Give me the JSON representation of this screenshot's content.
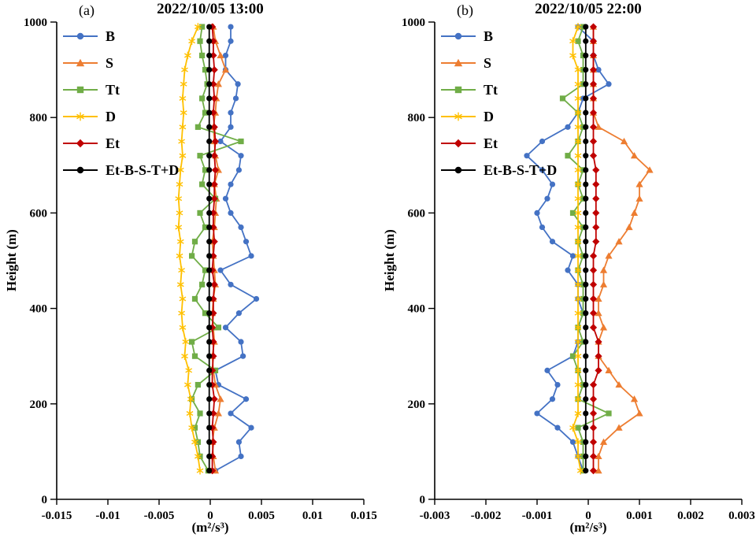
{
  "chart_data": [
    {
      "type": "line",
      "panel_label": "(a)",
      "title": "2022/10/05 13:00",
      "xlabel": "(m²/s³)",
      "ylabel": "Height (m)",
      "xlim": [
        -0.015,
        0.015
      ],
      "ylim": [
        0,
        1000
      ],
      "xticks": [
        "-0.015",
        "-0.01",
        "-0.005",
        "0",
        "0.005",
        "0.01",
        "0.015"
      ],
      "xtick_values": [
        -0.015,
        -0.01,
        -0.005,
        0,
        0.005,
        0.01,
        0.015
      ],
      "yticks": [
        0,
        200,
        400,
        600,
        800,
        1000
      ],
      "grid": false,
      "legend_position": "top-left",
      "heights_m": [
        60,
        90,
        120,
        150,
        180,
        210,
        240,
        270,
        300,
        330,
        360,
        390,
        420,
        450,
        480,
        510,
        540,
        570,
        600,
        630,
        660,
        690,
        720,
        750,
        780,
        810,
        840,
        870,
        900,
        930,
        960,
        990
      ],
      "series": [
        {
          "name": "B",
          "color": "#4472C4",
          "marker": "circle",
          "values": [
            0.0005,
            0.003,
            0.0028,
            0.004,
            0.002,
            0.0035,
            0.0008,
            0.0005,
            0.0032,
            0.003,
            0.0015,
            0.0028,
            0.0045,
            0.002,
            0.001,
            0.004,
            0.0035,
            0.003,
            0.002,
            0.0015,
            0.002,
            0.0028,
            0.003,
            0.001,
            0.002,
            0.002,
            0.0025,
            0.0027,
            0.0015,
            0.0015,
            0.002,
            0.002
          ]
        },
        {
          "name": "S",
          "color": "#ED7D31",
          "marker": "triangle",
          "values": [
            0.0005,
            0.0003,
            0.0002,
            0.0004,
            0.0008,
            0.001,
            0.0005,
            0.0003,
            0.0002,
            0.0004,
            0.0003,
            0.0002,
            0.0003,
            0.0005,
            0.0004,
            0.0003,
            0.0002,
            0.0004,
            0.0005,
            0.0006,
            0.0004,
            0.0008,
            0.0005,
            0.0004,
            0.0003,
            0.0005,
            0.0006,
            0.0008,
            0.0015,
            0.001,
            0.0005,
            0.0003
          ]
        },
        {
          "name": "Tt",
          "color": "#70AD47",
          "marker": "square",
          "values": [
            -0.0002,
            -0.001,
            -0.0012,
            -0.0015,
            -0.001,
            -0.0018,
            -0.0012,
            0.0005,
            -0.0015,
            -0.0018,
            0.0008,
            -0.0005,
            -0.0015,
            -0.0008,
            -0.0005,
            -0.0018,
            -0.0015,
            -0.0005,
            -0.001,
            0.0005,
            -0.0008,
            -0.0005,
            -0.001,
            0.003,
            -0.0012,
            -0.0005,
            -0.0008,
            -0.0003,
            -0.0005,
            -0.0008,
            -0.001,
            -0.0008
          ]
        },
        {
          "name": "D",
          "color": "#FFC000",
          "marker": "star",
          "values": [
            -0.001,
            -0.0012,
            -0.0015,
            -0.0018,
            -0.002,
            -0.0019,
            -0.0022,
            -0.0021,
            -0.0025,
            -0.0024,
            -0.0027,
            -0.0028,
            -0.0027,
            -0.0029,
            -0.0028,
            -0.003,
            -0.0029,
            -0.0031,
            -0.003,
            -0.0031,
            -0.003,
            -0.0029,
            -0.0027,
            -0.0028,
            -0.0027,
            -0.0026,
            -0.0027,
            -0.0026,
            -0.0025,
            -0.0022,
            -0.0018,
            -0.0012
          ]
        },
        {
          "name": "Et",
          "color": "#C00000",
          "marker": "diamond",
          "values": [
            0.0002,
            0.0002,
            0.0003,
            0.0002,
            0.0003,
            0.0004,
            0.0002,
            0.0002,
            0.0003,
            0.0003,
            0.0002,
            0.0003,
            0.0003,
            0.0004,
            0.0002,
            0.0003,
            0.0004,
            0.0003,
            0.0003,
            0.0004,
            0.0004,
            0.0005,
            0.0004,
            0.0005,
            0.0004,
            0.0003,
            0.0004,
            0.0003,
            0.0004,
            0.0003,
            0.0003,
            0.0002
          ]
        },
        {
          "name": "Et-B-S-T+D",
          "color": "#000000",
          "marker": "circle",
          "values": [
            -0.0001,
            -0.0001,
            -0.0001,
            -0.0001,
            -0.0001,
            -0.0001,
            -0.0001,
            -0.0001,
            -0.0001,
            -0.0001,
            -0.0001,
            -0.0001,
            -0.0001,
            -0.0001,
            -0.0001,
            -0.0001,
            -0.0001,
            -0.0001,
            -0.0001,
            -0.0001,
            -0.0001,
            -0.0001,
            -0.0001,
            -0.0001,
            -0.0001,
            -0.0001,
            -0.0001,
            -0.0001,
            -0.0001,
            -0.0001,
            -0.0001,
            -0.0001
          ]
        }
      ]
    },
    {
      "type": "line",
      "panel_label": "(b)",
      "title": "2022/10/05 22:00",
      "xlabel": "(m²/s³)",
      "ylabel": "Height (m)",
      "xlim": [
        -0.003,
        0.003
      ],
      "ylim": [
        0,
        1000
      ],
      "xticks": [
        "-0.003",
        "-0.002",
        "-0.001",
        "0",
        "0.001",
        "0.002",
        "0.003"
      ],
      "xtick_values": [
        -0.003,
        -0.002,
        -0.001,
        0,
        0.001,
        0.002,
        0.003
      ],
      "yticks": [
        0,
        200,
        400,
        600,
        800,
        1000
      ],
      "grid": false,
      "legend_position": "top-left",
      "heights_m": [
        60,
        90,
        120,
        150,
        180,
        210,
        240,
        270,
        300,
        330,
        360,
        390,
        420,
        450,
        480,
        510,
        540,
        570,
        600,
        630,
        660,
        690,
        720,
        750,
        780,
        810,
        840,
        870,
        900,
        930,
        960,
        990
      ],
      "series": [
        {
          "name": "B",
          "color": "#4472C4",
          "marker": "circle",
          "values": [
            -0.0001,
            -0.0002,
            -0.0003,
            -0.0006,
            -0.001,
            -0.0007,
            -0.0006,
            -0.0008,
            -0.0003,
            -0.0002,
            -0.0002,
            -0.0001,
            -0.0002,
            -0.0002,
            -0.0004,
            -0.0003,
            -0.0007,
            -0.0009,
            -0.001,
            -0.0008,
            -0.0007,
            -0.0009,
            -0.0012,
            -0.0009,
            -0.0004,
            -0.0002,
            -0.0001,
            0.0004,
            0.0002,
            0.0001,
            0.0001,
            -0.0002
          ]
        },
        {
          "name": "S",
          "color": "#ED7D31",
          "marker": "triangle",
          "values": [
            0.0002,
            0.0002,
            0.0003,
            0.0006,
            0.001,
            0.0009,
            0.0006,
            0.0004,
            0.0002,
            0.0002,
            0.0003,
            0.0002,
            0.0002,
            0.0003,
            0.0003,
            0.0004,
            0.0006,
            0.0008,
            0.0009,
            0.001,
            0.001,
            0.0012,
            0.0009,
            0.0007,
            0.0002,
            0.0001,
            0.0001,
            0.0001,
            0.0001,
            0.0001,
            0.0001,
            0.0001
          ]
        },
        {
          "name": "Tt",
          "color": "#70AD47",
          "marker": "square",
          "values": [
            -0.0001,
            -0.0001,
            -0.0001,
            -0.0002,
            0.0004,
            -0.0002,
            -0.0001,
            -0.0002,
            -0.0003,
            -0.0001,
            -0.0002,
            -0.0001,
            -0.0001,
            -0.0001,
            -0.0002,
            -0.0001,
            -0.0002,
            -0.0001,
            -0.0003,
            -0.0001,
            -0.0002,
            -0.0001,
            -0.0004,
            -0.0002,
            -0.0001,
            -0.0002,
            -0.0005,
            -0.0001,
            -0.0001,
            -0.0001,
            -0.0002,
            -0.0001
          ]
        },
        {
          "name": "D",
          "color": "#FFC000",
          "marker": "star",
          "values": [
            -0.00015,
            -0.0002,
            -0.0002,
            -0.0003,
            -0.0002,
            -0.0002,
            -0.0002,
            -0.0002,
            -0.0002,
            -0.0002,
            -0.0002,
            -0.0002,
            -0.0002,
            -0.0002,
            -0.0002,
            -0.0002,
            -0.0002,
            -0.0002,
            -0.0002,
            -0.0002,
            -0.0002,
            -0.0002,
            -0.0002,
            -0.0002,
            -0.0002,
            -0.0002,
            -0.0002,
            -0.0002,
            -0.0002,
            -0.0003,
            -0.0003,
            -0.0002
          ]
        },
        {
          "name": "Et",
          "color": "#C00000",
          "marker": "diamond",
          "values": [
            0.0001,
            0.0001,
            0.0001,
            0.0001,
            0.0001,
            0.0001,
            0.0001,
            0.0002,
            0.0002,
            0.0002,
            0.0001,
            0.0001,
            0.0001,
            0.0001,
            0.0001,
            0.0001,
            0.00015,
            0.00015,
            0.00015,
            0.00015,
            0.00015,
            0.00015,
            0.0001,
            0.0001,
            0.0001,
            0.0001,
            0.0001,
            0.0001,
            0.0001,
            0.0001,
            0.0001,
            0.0001
          ]
        },
        {
          "name": "Et-B-S-T+D",
          "color": "#000000",
          "marker": "circle",
          "values": [
            -5e-05,
            -5e-05,
            -5e-05,
            -5e-05,
            -5e-05,
            -5e-05,
            -5e-05,
            -5e-05,
            -5e-05,
            -5e-05,
            -5e-05,
            -5e-05,
            -5e-05,
            -5e-05,
            -5e-05,
            -5e-05,
            -5e-05,
            -5e-05,
            -5e-05,
            -5e-05,
            -5e-05,
            -5e-05,
            -5e-05,
            -5e-05,
            -5e-05,
            -5e-05,
            -5e-05,
            -5e-05,
            -5e-05,
            -5e-05,
            -5e-05,
            -5e-05
          ]
        }
      ]
    }
  ]
}
